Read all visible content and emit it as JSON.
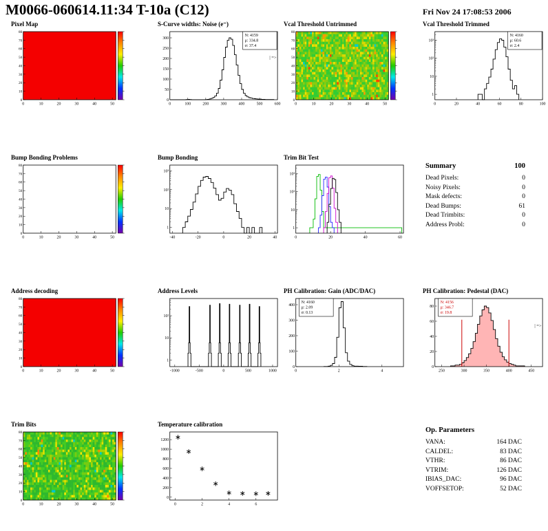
{
  "header": {
    "title": "M0066-060614.11:34 T-10a (C12)",
    "date": "Fri Nov 24 17:08:53 2006"
  },
  "colorbar_palette": [
    "#ff0000",
    "#ff8800",
    "#ffee00",
    "#22cc00",
    "#00e8e8",
    "#0033ff",
    "#7700aa"
  ],
  "chart_data": [
    {
      "title": "Pixel Map",
      "type": "heatmap",
      "fill": "#f40000",
      "colorbar": true,
      "xlim": [
        0,
        52
      ],
      "ylim": [
        0,
        80
      ],
      "xticks": [
        0,
        10,
        20,
        30,
        40,
        50
      ],
      "yticks": [
        0,
        10,
        20,
        30,
        40,
        50,
        60,
        70,
        80
      ]
    },
    {
      "title": "S-Curve widths: Noise (e⁻)",
      "type": "hist",
      "xlim": [
        0,
        600
      ],
      "ylim": [
        0,
        330
      ],
      "xticks": [
        0,
        100,
        200,
        300,
        400,
        500,
        600
      ],
      "yticks": [
        0,
        50,
        100,
        150,
        200,
        250,
        300
      ],
      "points": [
        [
          0,
          0
        ],
        [
          90,
          1
        ],
        [
          100,
          2
        ],
        [
          110,
          1
        ],
        [
          120,
          0
        ],
        [
          200,
          1
        ],
        [
          210,
          2
        ],
        [
          220,
          4
        ],
        [
          230,
          7
        ],
        [
          240,
          11
        ],
        [
          250,
          18
        ],
        [
          260,
          32
        ],
        [
          270,
          55
        ],
        [
          280,
          95
        ],
        [
          290,
          145
        ],
        [
          300,
          205
        ],
        [
          310,
          255
        ],
        [
          320,
          288
        ],
        [
          330,
          300
        ],
        [
          340,
          293
        ],
        [
          350,
          263
        ],
        [
          360,
          218
        ],
        [
          370,
          168
        ],
        [
          380,
          118
        ],
        [
          390,
          78
        ],
        [
          400,
          50
        ],
        [
          410,
          31
        ],
        [
          420,
          20
        ],
        [
          430,
          14
        ],
        [
          440,
          10
        ],
        [
          450,
          8
        ],
        [
          460,
          6
        ],
        [
          470,
          5
        ],
        [
          480,
          4
        ],
        [
          490,
          3
        ],
        [
          500,
          3
        ],
        [
          510,
          2
        ],
        [
          520,
          2
        ],
        [
          530,
          1
        ],
        [
          540,
          1
        ],
        [
          560,
          1
        ],
        [
          580,
          0
        ]
      ],
      "stats": {
        "pos": "tr",
        "color": "#000000",
        "lines": [
          "N: 4159",
          "μ: 334.8",
          "σ: 37.4"
        ]
      },
      "annotation": {
        "text": "| =>",
        "rx": 0.99,
        "ry": 0.4
      }
    },
    {
      "title": "Vcal Threshold Untrimmed",
      "type": "heatmap",
      "colorbar": true,
      "xlim": [
        0,
        52
      ],
      "ylim": [
        0,
        80
      ],
      "xticks": [
        0,
        10,
        20,
        30,
        40,
        50
      ],
      "yticks": [
        0,
        10,
        20,
        30,
        40,
        50,
        60,
        70,
        80
      ],
      "noise": {
        "seed": 12345,
        "palette": [
          [
            "#33cc33",
            0.28
          ],
          [
            "#55cc22",
            0.24
          ],
          [
            "#88cc11",
            0.18
          ],
          [
            "#aacc00",
            0.12
          ],
          [
            "#d8d800",
            0.09
          ],
          [
            "#f0e000",
            0.05
          ],
          [
            "#ff9900",
            0.025
          ],
          [
            "#ff4400",
            0.005
          ],
          [
            "#00cccc",
            0.01
          ]
        ]
      }
    },
    {
      "title": "Vcal Threshold Trimmed",
      "type": "hist",
      "ylog": true,
      "xlim": [
        0,
        100
      ],
      "ylim_log": [
        0.5,
        3000
      ],
      "xticks": [
        0,
        20,
        40,
        60,
        80,
        100
      ],
      "points": [
        [
          40,
          1
        ],
        [
          44,
          0
        ],
        [
          46,
          2
        ],
        [
          48,
          4
        ],
        [
          50,
          9
        ],
        [
          52,
          25
        ],
        [
          54,
          90
        ],
        [
          56,
          300
        ],
        [
          58,
          750
        ],
        [
          60,
          1200
        ],
        [
          62,
          1000
        ],
        [
          64,
          420
        ],
        [
          66,
          120
        ],
        [
          68,
          25
        ],
        [
          70,
          6
        ],
        [
          72,
          2
        ],
        [
          74,
          3
        ],
        [
          76,
          1
        ],
        [
          78,
          0
        ]
      ],
      "stats": {
        "pos": "tr",
        "color": "#000000",
        "lines": [
          "N: 4160",
          "μ: 60.6",
          "σ: 2.4"
        ]
      }
    },
    {
      "title": "Bump Bonding Problems",
      "type": "heatmap",
      "fill": "#ffffff",
      "colorbar": true,
      "xlim": [
        0,
        52
      ],
      "ylim": [
        0,
        80
      ],
      "xticks": [
        0,
        10,
        20,
        30,
        40,
        50
      ],
      "yticks": [
        0,
        10,
        20,
        30,
        40,
        50,
        60,
        70,
        80
      ]
    },
    {
      "title": "Bump Bonding",
      "type": "hist",
      "ylog": true,
      "xlim": [
        -42,
        42
      ],
      "ylim_log": [
        0.5,
        2000
      ],
      "xticks": [
        -40,
        -20,
        0,
        20,
        40
      ],
      "points": [
        [
          -32,
          1
        ],
        [
          -30,
          2
        ],
        [
          -28,
          4
        ],
        [
          -26,
          9
        ],
        [
          -24,
          22
        ],
        [
          -22,
          60
        ],
        [
          -20,
          150
        ],
        [
          -18,
          310
        ],
        [
          -16,
          460
        ],
        [
          -14,
          500
        ],
        [
          -12,
          390
        ],
        [
          -10,
          240
        ],
        [
          -8,
          120
        ],
        [
          -6,
          55
        ],
        [
          -4,
          28
        ],
        [
          -2,
          35
        ],
        [
          0,
          75
        ],
        [
          2,
          115
        ],
        [
          4,
          95
        ],
        [
          6,
          55
        ],
        [
          8,
          18
        ],
        [
          10,
          7
        ],
        [
          12,
          3
        ],
        [
          14,
          1
        ],
        [
          16,
          0
        ],
        [
          18,
          1
        ],
        [
          20,
          0
        ],
        [
          22,
          1
        ],
        [
          24,
          0
        ],
        [
          28,
          1
        ],
        [
          30,
          0
        ]
      ]
    },
    {
      "title": "Trim Bit Test",
      "type": "multihist",
      "ylog": true,
      "xlim": [
        0,
        62
      ],
      "ylim_log": [
        0.5,
        3000
      ],
      "xticks": [
        0,
        20,
        40,
        60
      ],
      "series": [
        {
          "color": "#00bb00",
          "points": [
            [
              8,
              1
            ],
            [
              10,
              3
            ],
            [
              11,
              40
            ],
            [
              12,
              700
            ],
            [
              13,
              900
            ],
            [
              14,
              120
            ],
            [
              15,
              8
            ],
            [
              16,
              1
            ],
            [
              60,
              1
            ],
            [
              61,
              0
            ]
          ]
        },
        {
          "color": "#2222ff",
          "points": [
            [
              13,
              1
            ],
            [
              14,
              5
            ],
            [
              15,
              60
            ],
            [
              16,
              500
            ],
            [
              17,
              650
            ],
            [
              18,
              180
            ],
            [
              19,
              15
            ],
            [
              20,
              2
            ],
            [
              21,
              1
            ],
            [
              22,
              0
            ]
          ]
        },
        {
          "color": "#cc00cc",
          "points": [
            [
              16,
              1
            ],
            [
              17,
              8
            ],
            [
              18,
              80
            ],
            [
              19,
              600
            ],
            [
              20,
              750
            ],
            [
              21,
              160
            ],
            [
              22,
              12
            ],
            [
              23,
              2
            ],
            [
              24,
              0
            ]
          ]
        },
        {
          "color": "#000000",
          "points": [
            [
              18,
              2
            ],
            [
              19,
              20
            ],
            [
              20,
              150
            ],
            [
              21,
              550
            ],
            [
              22,
              480
            ],
            [
              23,
              90
            ],
            [
              24,
              10
            ],
            [
              25,
              2
            ],
            [
              26,
              0
            ]
          ]
        }
      ]
    },
    {
      "title": "Address decoding",
      "type": "heatmap",
      "fill": "#f40000",
      "colorbar": true,
      "xlim": [
        0,
        52
      ],
      "ylim": [
        0,
        80
      ],
      "xticks": [
        0,
        10,
        20,
        30,
        40,
        50
      ],
      "yticks": [
        0,
        10,
        20,
        30,
        40,
        50,
        60,
        70,
        80
      ]
    },
    {
      "title": "Address Levels",
      "type": "hist",
      "ylog": true,
      "xlim": [
        -1100,
        1100
      ],
      "ylim_log": [
        0.5,
        600
      ],
      "xticks": [
        -1000,
        -500,
        0,
        500,
        1000
      ],
      "spikes": [
        [
          -700,
          260
        ],
        [
          -280,
          300
        ],
        [
          -80,
          350
        ],
        [
          120,
          330
        ],
        [
          330,
          300
        ],
        [
          530,
          330
        ],
        [
          730,
          260
        ]
      ]
    },
    {
      "title": "PH Calibration: Gain (ADC/DAC)",
      "type": "hist",
      "xlim": [
        0,
        5
      ],
      "ylim": [
        0,
        440
      ],
      "xticks": [
        0,
        2,
        4
      ],
      "yticks": [
        0,
        100,
        200,
        300,
        400
      ],
      "points": [
        [
          1.3,
          1
        ],
        [
          1.5,
          3
        ],
        [
          1.6,
          8
        ],
        [
          1.7,
          20
        ],
        [
          1.8,
          60
        ],
        [
          1.9,
          190
        ],
        [
          2.0,
          380
        ],
        [
          2.1,
          420
        ],
        [
          2.2,
          250
        ],
        [
          2.3,
          90
        ],
        [
          2.4,
          35
        ],
        [
          2.5,
          14
        ],
        [
          2.6,
          6
        ],
        [
          2.7,
          3
        ],
        [
          2.9,
          2
        ],
        [
          3.1,
          1
        ],
        [
          3.3,
          0
        ]
      ],
      "stats": {
        "pos": "tl",
        "color": "#000000",
        "lines": [
          "N: 4160",
          "μ: 2.09",
          "σ: 0.13"
        ]
      }
    },
    {
      "title": "PH Calibration: Pedestal (DAC)",
      "type": "hist",
      "xlim": [
        235,
        475
      ],
      "ylim": [
        0,
        90
      ],
      "xticks": [
        250,
        300,
        350,
        400,
        450
      ],
      "yticks": [
        0,
        20,
        40,
        60,
        80
      ],
      "fillColor": "rgba(255,70,70,0.40)",
      "points": [
        [
          270,
          1
        ],
        [
          275,
          1
        ],
        [
          280,
          2
        ],
        [
          285,
          2
        ],
        [
          290,
          3
        ],
        [
          295,
          5
        ],
        [
          300,
          8
        ],
        [
          305,
          12
        ],
        [
          310,
          17
        ],
        [
          315,
          24
        ],
        [
          320,
          33
        ],
        [
          325,
          44
        ],
        [
          330,
          56
        ],
        [
          335,
          67
        ],
        [
          340,
          75
        ],
        [
          345,
          80
        ],
        [
          350,
          78
        ],
        [
          355,
          71
        ],
        [
          360,
          61
        ],
        [
          365,
          49
        ],
        [
          370,
          37
        ],
        [
          375,
          27
        ],
        [
          380,
          19
        ],
        [
          385,
          13
        ],
        [
          390,
          9
        ],
        [
          395,
          6
        ],
        [
          400,
          4
        ],
        [
          405,
          3
        ],
        [
          410,
          2
        ],
        [
          415,
          1
        ],
        [
          425,
          1
        ],
        [
          435,
          0
        ]
      ],
      "vlines": [
        {
          "x": 295,
          "h": 62,
          "color": "#cc0000"
        },
        {
          "x": 400,
          "h": 62,
          "color": "#cc0000"
        }
      ],
      "stats": {
        "pos": "tl",
        "color": "#cc0000",
        "lines": [
          "N: 4156",
          "μ: 346.7",
          "σ: 19.8"
        ]
      },
      "annotation": {
        "text": "| =>",
        "rx": 0.99,
        "ry": 0.42
      }
    },
    {
      "title": "Trim Bits",
      "type": "heatmap",
      "colorbar": true,
      "xlim": [
        0,
        52
      ],
      "ylim": [
        0,
        80
      ],
      "xticks": [
        0,
        10,
        20,
        30,
        40,
        50
      ],
      "yticks": [
        0,
        10,
        20,
        30,
        40,
        50,
        60,
        70,
        80
      ],
      "noise": {
        "seed": 777,
        "palette": [
          [
            "#2eb82e",
            0.38
          ],
          [
            "#44cc22",
            0.28
          ],
          [
            "#77cc11",
            0.15
          ],
          [
            "#a8d400",
            0.09
          ],
          [
            "#e0e000",
            0.05
          ],
          [
            "#f8e800",
            0.03
          ],
          [
            "#ff8800",
            0.01
          ],
          [
            "#00c8c8",
            0.01
          ]
        ]
      }
    },
    {
      "title": "Temperature calibration",
      "type": "scatter",
      "xlim": [
        -0.4,
        7.6
      ],
      "ylim": [
        -60,
        1360
      ],
      "xticks": [
        0,
        2,
        4,
        6
      ],
      "yticks": [
        0,
        200,
        400,
        600,
        800,
        1000,
        1200
      ],
      "markers": [
        [
          0.2,
          1250
        ],
        [
          1.0,
          950
        ],
        [
          2.0,
          590
        ],
        [
          3.0,
          280
        ],
        [
          4.0,
          90
        ],
        [
          5.0,
          78
        ],
        [
          6.0,
          72
        ],
        [
          6.9,
          78
        ]
      ]
    }
  ],
  "summary": {
    "title": "Summary",
    "score": "100",
    "items": [
      {
        "label": "Dead Pixels:",
        "value": "0"
      },
      {
        "label": "Noisy Pixels:",
        "value": "0"
      },
      {
        "label": "Mask defects:",
        "value": "0"
      },
      {
        "label": "Dead Bumps:",
        "value": "61"
      },
      {
        "label": "Dead Trimbits:",
        "value": "0"
      },
      {
        "label": "Address Probl:",
        "value": "0"
      }
    ]
  },
  "op_parameters": {
    "title": "Op. Parameters",
    "items": [
      {
        "label": "VANA:",
        "value": "164 DAC"
      },
      {
        "label": "CALDEL:",
        "value": "83 DAC"
      },
      {
        "label": "VTHR:",
        "value": "86 DAC"
      },
      {
        "label": "VTRIM:",
        "value": "126 DAC"
      },
      {
        "label": "IBIAS_DAC:",
        "value": "96 DAC"
      },
      {
        "label": "VOFFSETOP:",
        "value": "52 DAC"
      }
    ]
  }
}
